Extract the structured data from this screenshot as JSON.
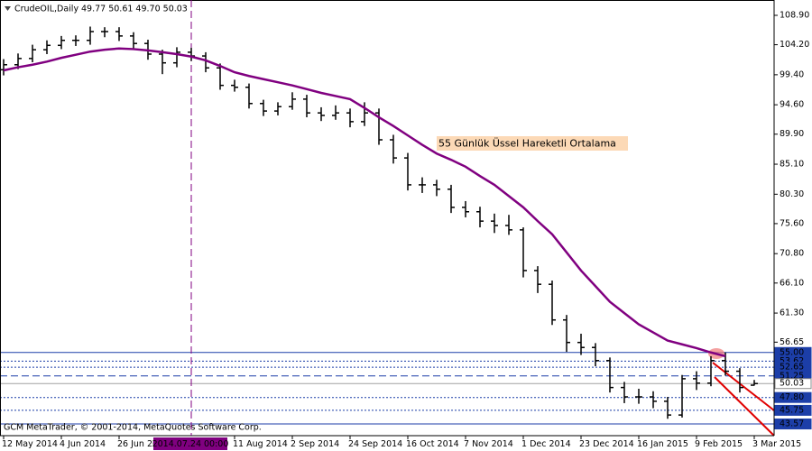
{
  "chart_data": {
    "type": "ohlc",
    "symbol": "CrudeOIL,Daily",
    "quote": "49.77 50.61 49.70 50.03",
    "footer": "GCM MetaTrader, © 2001-2014, MetaQuotes Software Corp.",
    "bar_color": "#000000",
    "categories": [
      "12 May 2014",
      null,
      null,
      null,
      "4 Jun 2014",
      null,
      null,
      null,
      "26 Jun 20",
      null,
      null,
      null,
      null,
      "2014.07.24 00:00",
      null,
      null,
      "11 Aug 2014",
      null,
      null,
      null,
      "2 Sep 2014",
      null,
      null,
      null,
      "24 Sep 2014",
      null,
      null,
      null,
      "16 Oct 2014",
      null,
      null,
      null,
      "7 Nov 2014",
      null,
      null,
      null,
      "1 Dec 2014",
      null,
      null,
      null,
      "23 Dec 2014",
      null,
      null,
      null,
      "16 Jan 2015",
      null,
      null,
      null,
      "9 Feb 2015",
      null,
      null,
      null,
      "3 Mar 2015"
    ],
    "crosshair_category": 13,
    "open": [
      100.2,
      101.0,
      102.0,
      103.4,
      104.1,
      104.9,
      104.9,
      106.3,
      106.3,
      105.6,
      104.4,
      102.7,
      101.3,
      103.0,
      102.4,
      100.5,
      97.7,
      97.4,
      94.8,
      93.6,
      94.3,
      95.5,
      93.3,
      92.9,
      93.3,
      91.9,
      93.3,
      89.0,
      86.1,
      81.8,
      81.8,
      81.1,
      78.2,
      77.5,
      76.0,
      75.3,
      74.6,
      68.1,
      65.9,
      60.2,
      56.6,
      55.8,
      53.7,
      49.4,
      47.9,
      47.9,
      47.2,
      45.0,
      50.8,
      50.1,
      53.7,
      52.0,
      49.77
    ],
    "high": [
      101.9,
      102.8,
      104.2,
      104.9,
      105.6,
      105.7,
      107.1,
      107.0,
      107.0,
      106.2,
      105.0,
      103.4,
      103.8,
      103.7,
      103.0,
      101.2,
      98.6,
      98.0,
      95.4,
      95.0,
      96.6,
      96.2,
      94.2,
      94.5,
      94.0,
      95.0,
      94.0,
      89.8,
      86.9,
      83.0,
      82.6,
      81.8,
      79.2,
      78.3,
      77.2,
      77.0,
      75.0,
      68.8,
      66.5,
      61.0,
      58.0,
      56.5,
      54.2,
      50.3,
      49.2,
      48.8,
      47.9,
      51.4,
      52.0,
      54.4,
      55.0,
      52.5,
      50.61
    ],
    "low": [
      99.3,
      100.3,
      101.4,
      102.7,
      103.5,
      104.0,
      104.2,
      105.4,
      104.8,
      103.6,
      101.8,
      99.5,
      100.6,
      101.6,
      99.8,
      97.0,
      96.7,
      94.0,
      92.8,
      92.9,
      93.8,
      92.6,
      92.0,
      92.2,
      91.0,
      91.2,
      88.2,
      85.2,
      80.9,
      80.5,
      80.0,
      77.3,
      76.6,
      75.0,
      74.1,
      73.8,
      67.0,
      64.5,
      59.4,
      55.1,
      54.6,
      52.8,
      48.6,
      46.9,
      46.8,
      46.1,
      44.4,
      44.6,
      49.0,
      49.6,
      51.3,
      48.6,
      49.7
    ],
    "close": [
      101.0,
      102.0,
      103.4,
      104.1,
      104.9,
      104.9,
      106.3,
      106.3,
      105.6,
      104.4,
      102.7,
      101.3,
      103.0,
      102.4,
      100.5,
      97.7,
      97.4,
      94.8,
      93.6,
      94.3,
      95.5,
      93.3,
      92.9,
      93.3,
      91.9,
      93.3,
      89.0,
      86.1,
      81.8,
      81.8,
      81.1,
      78.2,
      77.5,
      76.0,
      75.3,
      74.6,
      68.1,
      65.9,
      60.2,
      56.6,
      55.8,
      53.7,
      49.4,
      47.9,
      47.9,
      47.2,
      45.0,
      50.8,
      50.1,
      53.7,
      52.0,
      49.4,
      50.03
    ],
    "series": [
      {
        "name": "55 Günlük Üssel Hareketli Ortalama",
        "color": "#800080",
        "values": [
          100.1,
          100.6,
          101.0,
          101.5,
          102.1,
          102.6,
          103.1,
          103.4,
          103.6,
          103.5,
          103.3,
          103.0,
          102.7,
          102.3,
          101.7,
          100.8,
          99.8,
          99.2,
          98.7,
          98.2,
          97.7,
          97.1,
          96.5,
          96.0,
          95.5,
          94.1,
          92.6,
          91.2,
          89.7,
          88.2,
          86.8,
          85.8,
          84.7,
          83.2,
          81.8,
          80.0,
          78.2,
          76.0,
          73.9,
          71.0,
          68.1,
          65.6,
          63.1,
          61.3,
          59.5,
          58.2,
          56.9,
          56.3,
          55.7,
          55.0,
          54.4,
          null,
          null
        ]
      }
    ],
    "ylim": [
      41.7,
      111.35
    ],
    "yticks": [
      {
        "value": 108.9,
        "label": "108.90"
      },
      {
        "value": 104.2,
        "label": "104.20"
      },
      {
        "value": 99.4,
        "label": "99.40"
      },
      {
        "value": 94.6,
        "label": "94.60"
      },
      {
        "value": 89.9,
        "label": "89.90"
      },
      {
        "value": 85.1,
        "label": "85.10"
      },
      {
        "value": 80.3,
        "label": "80.30"
      },
      {
        "value": 75.6,
        "label": "75.60"
      },
      {
        "value": 70.8,
        "label": "70.80"
      },
      {
        "value": 66.1,
        "label": "66.10"
      },
      {
        "value": 61.3,
        "label": "61.30"
      },
      56.65
    ],
    "levels": [
      {
        "price": {
          "value": 55,
          "label": "55.00"
        },
        "style": "solid",
        "color": "#1c3ea8"
      },
      {
        "price": 53.62,
        "style": "dashed",
        "color": "#1c3ea8"
      },
      {
        "price": 52.65,
        "style": "dashed",
        "color": "#1c3ea8"
      },
      {
        "price": 51.25,
        "style": "longdash",
        "color": "#1c3ea8"
      },
      {
        "price": 50.03,
        "style": "current",
        "color": "#a0a0a0"
      },
      {
        "price": {
          "value": 47.8,
          "label": "47.80"
        },
        "style": "dashed",
        "color": "#1c3ea8"
      },
      {
        "price": 45.75,
        "style": "dashed",
        "color": "#1c3ea8"
      },
      {
        "price": 43.57,
        "style": "solid",
        "color": "#1c3ea8"
      }
    ]
  }
}
